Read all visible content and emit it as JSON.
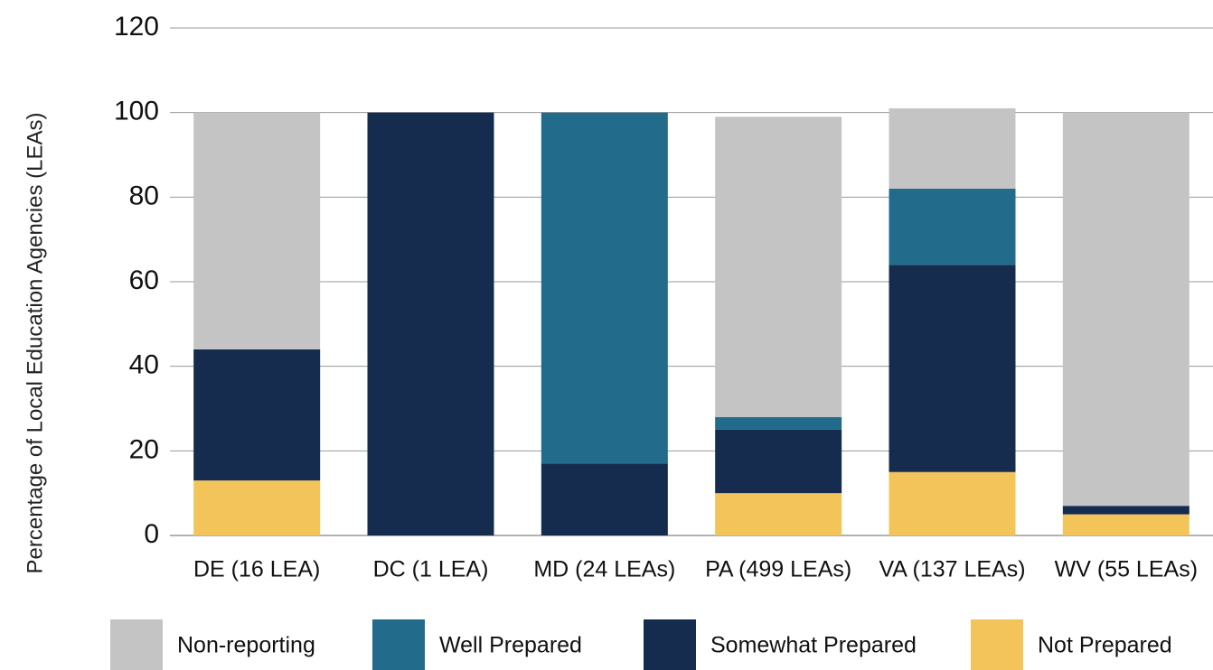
{
  "chart_data": {
    "type": "stacked_bar",
    "y_label": "Percentage of Local Education Agencies (LEAs)",
    "categories": [
      "DE (16 LEA)",
      "DC (1 LEA)",
      "MD (24 LEAs)",
      "PA (499 LEAs)",
      "VA (137 LEAs)",
      "WV (55 LEAs)"
    ],
    "series": [
      {
        "name": "Non-reporting",
        "color": "#c3c4c3",
        "values": [
          56,
          0,
          0,
          71,
          19,
          93
        ]
      },
      {
        "name": "Well Prepared",
        "color": "#226b8a",
        "values": [
          0,
          0,
          83,
          3,
          18,
          0
        ]
      },
      {
        "name": "Somewhat Prepared",
        "color": "#152c4f",
        "values": [
          31,
          100,
          17,
          15,
          49,
          2
        ]
      },
      {
        "name": "Not Prepared",
        "color": "#f2c45a",
        "values": [
          13,
          0,
          0,
          10,
          15,
          5
        ]
      }
    ],
    "ylim": [
      0,
      120
    ],
    "yticks": [
      0,
      20,
      40,
      60,
      80,
      100,
      120
    ],
    "grid": true,
    "legend": "bottom"
  }
}
